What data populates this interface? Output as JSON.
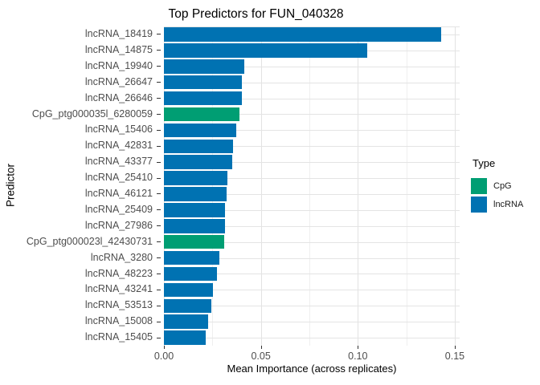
{
  "chart_data": {
    "type": "bar",
    "orientation": "horizontal",
    "title": "Top Predictors for FUN_040328",
    "xlabel": "Mean Importance (across replicates)",
    "ylabel": "Predictor",
    "xlim": [
      0,
      0.1525
    ],
    "grid": true,
    "x_ticks": [
      0,
      0.05,
      0.1,
      0.15
    ],
    "x_tick_labels": [
      "0.00",
      "0.05",
      "0.10",
      "0.15"
    ],
    "x_minor_ticks": [
      0.025,
      0.075,
      0.125
    ],
    "categories": [
      "lncRNA_18419",
      "lncRNA_14875",
      "lncRNA_19940",
      "lncRNA_26647",
      "lncRNA_26646",
      "CpG_ptg000035l_6280059",
      "lncRNA_15406",
      "lncRNA_42831",
      "lncRNA_43377",
      "lncRNA_25410",
      "lncRNA_46121",
      "lncRNA_25409",
      "lncRNA_27986",
      "CpG_ptg000023l_42430731",
      "lncRNA_3280",
      "lncRNA_48223",
      "lncRNA_43241",
      "lncRNA_53513",
      "lncRNA_15008",
      "lncRNA_15405"
    ],
    "values": [
      0.143,
      0.105,
      0.0415,
      0.0402,
      0.0401,
      0.039,
      0.0371,
      0.0355,
      0.0354,
      0.0327,
      0.0322,
      0.0317,
      0.0313,
      0.0309,
      0.0288,
      0.0274,
      0.0251,
      0.0243,
      0.0226,
      0.0217
    ],
    "types": [
      "lncRNA",
      "lncRNA",
      "lncRNA",
      "lncRNA",
      "lncRNA",
      "CpG",
      "lncRNA",
      "lncRNA",
      "lncRNA",
      "lncRNA",
      "lncRNA",
      "lncRNA",
      "lncRNA",
      "CpG",
      "lncRNA",
      "lncRNA",
      "lncRNA",
      "lncRNA",
      "lncRNA",
      "lncRNA"
    ],
    "colors": {
      "CpG": "#009E73",
      "lncRNA": "#0072B2"
    },
    "legend": {
      "title": "Type",
      "position": "right",
      "entries": [
        {
          "label": "CpG",
          "color": "#009E73"
        },
        {
          "label": "lncRNA",
          "color": "#0072B2"
        }
      ]
    }
  }
}
